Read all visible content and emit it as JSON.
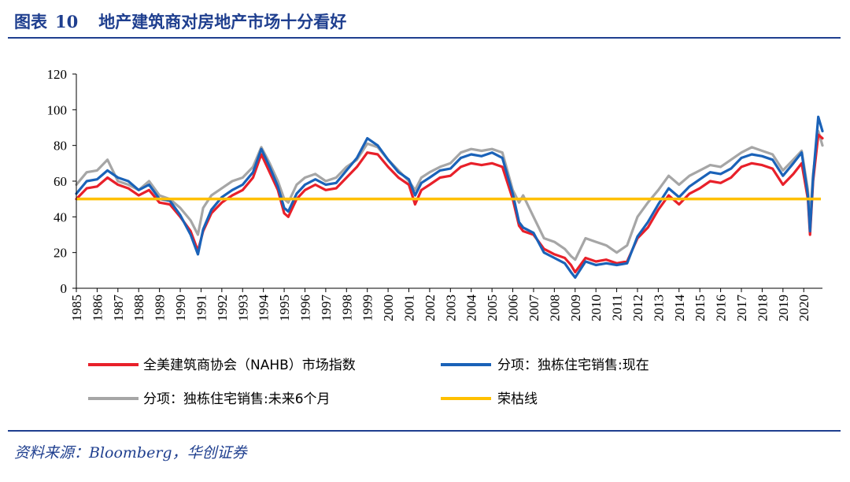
{
  "header": {
    "label": "图表",
    "number": "10",
    "title": "地产建筑商对房地产市场十分看好"
  },
  "source": "资料来源：Bloomberg，华创证券",
  "colors": {
    "nahb": "#e8202a",
    "current": "#1a62b8",
    "future": "#a6a6a6",
    "boom_bust": "#ffc000",
    "axis": "#000000"
  },
  "chart_data": {
    "type": "line",
    "ylim": [
      0,
      120
    ],
    "yticks": [
      0,
      20,
      40,
      60,
      80,
      100,
      120
    ],
    "xlim": [
      1985,
      2020.9
    ],
    "xticks": [
      "1985",
      "1986",
      "1987",
      "1988",
      "1989",
      "1990",
      "1991",
      "1992",
      "1993",
      "1994",
      "1995",
      "1996",
      "1997",
      "1998",
      "1999",
      "2000",
      "2001",
      "2002",
      "2003",
      "2004",
      "2005",
      "2006",
      "2007",
      "2008",
      "2009",
      "2010",
      "2011",
      "2012",
      "2013",
      "2014",
      "2015",
      "2016",
      "2017",
      "2018",
      "2019",
      "2020"
    ],
    "reference_line": {
      "name": "荣枯线",
      "value": 50
    },
    "series": [
      {
        "name": "全美建筑商协会（NAHB）市场指数",
        "key": "nahb",
        "points": [
          [
            1985.0,
            50
          ],
          [
            1985.5,
            56
          ],
          [
            1986.0,
            57
          ],
          [
            1986.5,
            62
          ],
          [
            1987.0,
            58
          ],
          [
            1987.5,
            56
          ],
          [
            1988.0,
            52
          ],
          [
            1988.5,
            55
          ],
          [
            1989.0,
            48
          ],
          [
            1989.5,
            47
          ],
          [
            1990.0,
            40
          ],
          [
            1990.5,
            32
          ],
          [
            1990.85,
            21
          ],
          [
            1991.1,
            32
          ],
          [
            1991.5,
            42
          ],
          [
            1992.0,
            48
          ],
          [
            1992.5,
            52
          ],
          [
            1993.0,
            55
          ],
          [
            1993.5,
            62
          ],
          [
            1993.9,
            75
          ],
          [
            1994.3,
            65
          ],
          [
            1994.7,
            55
          ],
          [
            1995.0,
            42
          ],
          [
            1995.2,
            40
          ],
          [
            1995.6,
            50
          ],
          [
            1996.0,
            55
          ],
          [
            1996.5,
            58
          ],
          [
            1997.0,
            55
          ],
          [
            1997.5,
            56
          ],
          [
            1998.0,
            62
          ],
          [
            1998.5,
            68
          ],
          [
            1999.0,
            76
          ],
          [
            1999.5,
            75
          ],
          [
            2000.0,
            68
          ],
          [
            2000.5,
            62
          ],
          [
            2001.0,
            58
          ],
          [
            2001.3,
            47
          ],
          [
            2001.6,
            55
          ],
          [
            2002.0,
            58
          ],
          [
            2002.5,
            62
          ],
          [
            2003.0,
            63
          ],
          [
            2003.5,
            68
          ],
          [
            2004.0,
            70
          ],
          [
            2004.5,
            69
          ],
          [
            2005.0,
            70
          ],
          [
            2005.5,
            68
          ],
          [
            2006.0,
            50
          ],
          [
            2006.3,
            35
          ],
          [
            2006.5,
            32
          ],
          [
            2007.0,
            30
          ],
          [
            2007.5,
            22
          ],
          [
            2008.0,
            19
          ],
          [
            2008.5,
            17
          ],
          [
            2008.8,
            13
          ],
          [
            2009.0,
            9
          ],
          [
            2009.5,
            17
          ],
          [
            2010.0,
            15
          ],
          [
            2010.5,
            16
          ],
          [
            2011.0,
            14
          ],
          [
            2011.5,
            15
          ],
          [
            2012.0,
            28
          ],
          [
            2012.5,
            34
          ],
          [
            2013.0,
            44
          ],
          [
            2013.5,
            52
          ],
          [
            2014.0,
            47
          ],
          [
            2014.5,
            53
          ],
          [
            2015.0,
            56
          ],
          [
            2015.5,
            60
          ],
          [
            2016.0,
            59
          ],
          [
            2016.5,
            62
          ],
          [
            2017.0,
            68
          ],
          [
            2017.5,
            70
          ],
          [
            2018.0,
            69
          ],
          [
            2018.5,
            67
          ],
          [
            2019.0,
            58
          ],
          [
            2019.5,
            64
          ],
          [
            2019.9,
            70
          ],
          [
            2020.2,
            50
          ],
          [
            2020.3,
            30
          ],
          [
            2020.45,
            60
          ],
          [
            2020.7,
            86
          ],
          [
            2020.9,
            84
          ]
        ]
      },
      {
        "name": "分项：独栋住宅销售:现在",
        "key": "current",
        "points": [
          [
            1985.0,
            53
          ],
          [
            1985.5,
            60
          ],
          [
            1986.0,
            61
          ],
          [
            1986.5,
            66
          ],
          [
            1987.0,
            62
          ],
          [
            1987.5,
            60
          ],
          [
            1988.0,
            55
          ],
          [
            1988.5,
            58
          ],
          [
            1989.0,
            50
          ],
          [
            1989.5,
            49
          ],
          [
            1990.0,
            41
          ],
          [
            1990.5,
            30
          ],
          [
            1990.85,
            19
          ],
          [
            1991.1,
            33
          ],
          [
            1991.5,
            44
          ],
          [
            1992.0,
            51
          ],
          [
            1992.5,
            55
          ],
          [
            1993.0,
            58
          ],
          [
            1993.5,
            65
          ],
          [
            1993.9,
            78
          ],
          [
            1994.3,
            68
          ],
          [
            1994.7,
            57
          ],
          [
            1995.0,
            45
          ],
          [
            1995.2,
            43
          ],
          [
            1995.6,
            53
          ],
          [
            1996.0,
            58
          ],
          [
            1996.5,
            61
          ],
          [
            1997.0,
            58
          ],
          [
            1997.5,
            59
          ],
          [
            1998.0,
            66
          ],
          [
            1998.5,
            73
          ],
          [
            1999.0,
            84
          ],
          [
            1999.5,
            80
          ],
          [
            2000.0,
            72
          ],
          [
            2000.5,
            65
          ],
          [
            2001.0,
            61
          ],
          [
            2001.3,
            52
          ],
          [
            2001.6,
            59
          ],
          [
            2002.0,
            62
          ],
          [
            2002.5,
            66
          ],
          [
            2003.0,
            67
          ],
          [
            2003.5,
            73
          ],
          [
            2004.0,
            75
          ],
          [
            2004.5,
            74
          ],
          [
            2005.0,
            76
          ],
          [
            2005.5,
            73
          ],
          [
            2006.0,
            53
          ],
          [
            2006.3,
            37
          ],
          [
            2006.5,
            34
          ],
          [
            2007.0,
            31
          ],
          [
            2007.5,
            20
          ],
          [
            2008.0,
            17
          ],
          [
            2008.5,
            14
          ],
          [
            2008.8,
            9
          ],
          [
            2009.0,
            6
          ],
          [
            2009.5,
            15
          ],
          [
            2010.0,
            13
          ],
          [
            2010.5,
            14
          ],
          [
            2011.0,
            13
          ],
          [
            2011.5,
            14
          ],
          [
            2012.0,
            29
          ],
          [
            2012.5,
            37
          ],
          [
            2013.0,
            47
          ],
          [
            2013.5,
            56
          ],
          [
            2014.0,
            51
          ],
          [
            2014.5,
            57
          ],
          [
            2015.0,
            61
          ],
          [
            2015.5,
            65
          ],
          [
            2016.0,
            64
          ],
          [
            2016.5,
            67
          ],
          [
            2017.0,
            73
          ],
          [
            2017.5,
            75
          ],
          [
            2018.0,
            74
          ],
          [
            2018.5,
            72
          ],
          [
            2019.0,
            63
          ],
          [
            2019.5,
            70
          ],
          [
            2019.9,
            76
          ],
          [
            2020.2,
            52
          ],
          [
            2020.3,
            32
          ],
          [
            2020.45,
            62
          ],
          [
            2020.7,
            96
          ],
          [
            2020.9,
            88
          ]
        ]
      },
      {
        "name": "分项：独栋住宅销售:未来6个月",
        "key": "future",
        "points": [
          [
            1985.0,
            58
          ],
          [
            1985.5,
            65
          ],
          [
            1986.0,
            66
          ],
          [
            1986.5,
            72
          ],
          [
            1987.0,
            60
          ],
          [
            1987.5,
            58
          ],
          [
            1988.0,
            55
          ],
          [
            1988.5,
            60
          ],
          [
            1989.0,
            52
          ],
          [
            1989.5,
            50
          ],
          [
            1990.0,
            45
          ],
          [
            1990.5,
            38
          ],
          [
            1990.85,
            30
          ],
          [
            1991.1,
            45
          ],
          [
            1991.5,
            52
          ],
          [
            1992.0,
            56
          ],
          [
            1992.5,
            60
          ],
          [
            1993.0,
            62
          ],
          [
            1993.5,
            68
          ],
          [
            1993.9,
            79
          ],
          [
            1994.3,
            70
          ],
          [
            1994.7,
            60
          ],
          [
            1995.0,
            50
          ],
          [
            1995.2,
            48
          ],
          [
            1995.6,
            58
          ],
          [
            1996.0,
            62
          ],
          [
            1996.5,
            64
          ],
          [
            1997.0,
            60
          ],
          [
            1997.5,
            62
          ],
          [
            1998.0,
            68
          ],
          [
            1998.5,
            72
          ],
          [
            1999.0,
            81
          ],
          [
            1999.5,
            79
          ],
          [
            2000.0,
            72
          ],
          [
            2000.5,
            66
          ],
          [
            2001.0,
            60
          ],
          [
            2001.3,
            55
          ],
          [
            2001.6,
            62
          ],
          [
            2002.0,
            65
          ],
          [
            2002.5,
            68
          ],
          [
            2003.0,
            70
          ],
          [
            2003.5,
            76
          ],
          [
            2004.0,
            78
          ],
          [
            2004.5,
            77
          ],
          [
            2005.0,
            78
          ],
          [
            2005.5,
            76
          ],
          [
            2006.0,
            55
          ],
          [
            2006.3,
            48
          ],
          [
            2006.5,
            52
          ],
          [
            2007.0,
            40
          ],
          [
            2007.5,
            28
          ],
          [
            2008.0,
            26
          ],
          [
            2008.5,
            22
          ],
          [
            2008.8,
            18
          ],
          [
            2009.0,
            16
          ],
          [
            2009.5,
            28
          ],
          [
            2010.0,
            26
          ],
          [
            2010.5,
            24
          ],
          [
            2011.0,
            20
          ],
          [
            2011.5,
            24
          ],
          [
            2012.0,
            40
          ],
          [
            2012.5,
            48
          ],
          [
            2013.0,
            55
          ],
          [
            2013.5,
            63
          ],
          [
            2014.0,
            58
          ],
          [
            2014.5,
            63
          ],
          [
            2015.0,
            66
          ],
          [
            2015.5,
            69
          ],
          [
            2016.0,
            68
          ],
          [
            2016.5,
            72
          ],
          [
            2017.0,
            76
          ],
          [
            2017.5,
            79
          ],
          [
            2018.0,
            77
          ],
          [
            2018.5,
            75
          ],
          [
            2019.0,
            66
          ],
          [
            2019.5,
            72
          ],
          [
            2019.9,
            77
          ],
          [
            2020.2,
            55
          ],
          [
            2020.3,
            38
          ],
          [
            2020.45,
            64
          ],
          [
            2020.7,
            88
          ],
          [
            2020.9,
            80
          ]
        ]
      }
    ],
    "legend": [
      {
        "key": "nahb",
        "label": "全美建筑商协会（NAHB）市场指数"
      },
      {
        "key": "current",
        "label": "分项：独栋住宅销售:现在"
      },
      {
        "key": "future",
        "label": "分项：独栋住宅销售:未来6个月"
      },
      {
        "key": "boom_bust",
        "label": "荣枯线"
      }
    ]
  }
}
